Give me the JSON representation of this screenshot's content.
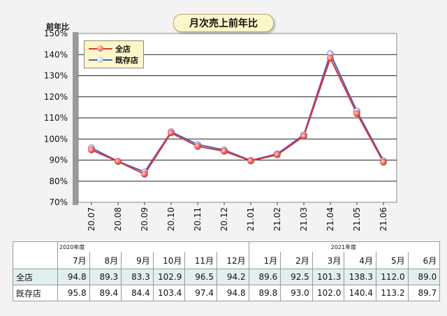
{
  "chart_data": {
    "type": "line",
    "title": "月次売上前年比",
    "ylabel": "前年比",
    "ylim": [
      70,
      150
    ],
    "yticks": [
      "70%",
      "80%",
      "90%",
      "100%",
      "110%",
      "120%",
      "130%",
      "140%",
      "150%"
    ],
    "categories": [
      "20.07",
      "20.08",
      "20.09",
      "20.10",
      "20.11",
      "20.12",
      "21.01",
      "21.02",
      "21.03",
      "21.04",
      "21.05",
      "21.06"
    ],
    "series": [
      {
        "name": "全店",
        "color": "#e8312a",
        "values": [
          94.8,
          89.3,
          83.3,
          102.9,
          96.5,
          94.2,
          89.6,
          92.5,
          101.3,
          138.3,
          112.0,
          89.0
        ]
      },
      {
        "name": "既存店",
        "color": "#4a62c8",
        "values": [
          95.8,
          89.4,
          84.4,
          103.4,
          97.4,
          94.8,
          89.8,
          93.0,
          102.0,
          140.4,
          113.2,
          89.7
        ]
      }
    ],
    "grid": true,
    "legend": "top-left"
  },
  "table": {
    "year_labels": [
      "2020年度",
      "2021年度"
    ],
    "months": [
      "7月",
      "8月",
      "9月",
      "10月",
      "11月",
      "12月",
      "1月",
      "2月",
      "3月",
      "4月",
      "5月",
      "6月"
    ],
    "rows": [
      {
        "label": "全店",
        "values": [
          "94.8",
          "89.3",
          "83.3",
          "102.9",
          "96.5",
          "94.2",
          "89.6",
          "92.5",
          "101.3",
          "138.3",
          "112.0",
          "89.0"
        ]
      },
      {
        "label": "既存店",
        "values": [
          "95.8",
          "89.4",
          "84.4",
          "103.4",
          "97.4",
          "94.8",
          "89.8",
          "93.0",
          "102.0",
          "140.4",
          "113.2",
          "89.7"
        ]
      }
    ]
  }
}
